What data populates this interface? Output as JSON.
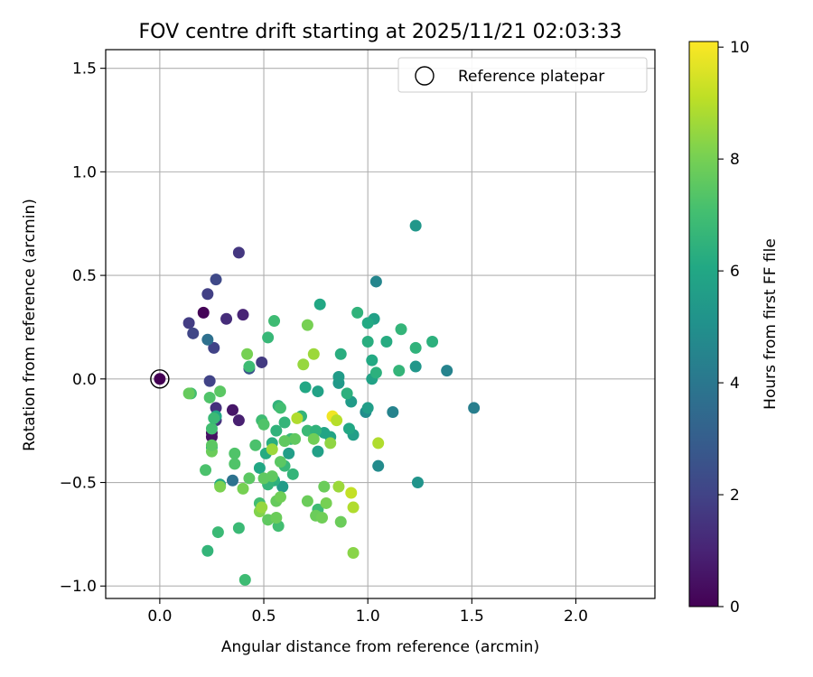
{
  "chart_data": {
    "type": "scatter",
    "title": "FOV centre drift starting at 2025/11/21 02:03:33",
    "xlabel": "Angular distance from reference (arcmin)",
    "ylabel": "Rotation from reference (arcmin)",
    "xlim": [
      -0.26,
      2.38
    ],
    "ylim": [
      -1.06,
      1.59
    ],
    "xticks": [
      0.0,
      0.5,
      1.0,
      1.5,
      2.0
    ],
    "xtick_labels": [
      "0.0",
      "0.5",
      "1.0",
      "1.5",
      "2.0"
    ],
    "yticks": [
      -1.0,
      -0.5,
      0.0,
      0.5,
      1.0,
      1.5
    ],
    "ytick_labels": [
      "−1.0",
      "−0.5",
      "0.0",
      "0.5",
      "1.0",
      "1.5"
    ],
    "grid": true,
    "legend": {
      "location": "top-right",
      "entries": [
        "Reference platepar"
      ]
    },
    "reference_point": {
      "x": 0.0,
      "y": 0.0,
      "label": "Reference platepar"
    },
    "colorbar": {
      "label": "Hours from first FF file",
      "range": [
        0,
        10.1
      ],
      "ticks": [
        0,
        2,
        4,
        6,
        8,
        10
      ],
      "tick_labels": [
        "0",
        "2",
        "4",
        "6",
        "8",
        "10"
      ],
      "colormap": "viridis"
    },
    "series": [
      {
        "name": "FF files",
        "color_by": "hours",
        "points": [
          {
            "x": 0.0,
            "y": 0.0,
            "hours": 0.0
          },
          {
            "x": 0.21,
            "y": 0.32,
            "hours": 0.1
          },
          {
            "x": 0.25,
            "y": -0.26,
            "hours": 0.4
          },
          {
            "x": 0.25,
            "y": -0.28,
            "hours": 0.5
          },
          {
            "x": 0.35,
            "y": -0.15,
            "hours": 0.6
          },
          {
            "x": 0.38,
            "y": -0.2,
            "hours": 0.9
          },
          {
            "x": 0.4,
            "y": 0.31,
            "hours": 1.0
          },
          {
            "x": 0.32,
            "y": 0.29,
            "hours": 1.3
          },
          {
            "x": 0.27,
            "y": -0.14,
            "hours": 1.4
          },
          {
            "x": 0.27,
            "y": -0.2,
            "hours": 1.5
          },
          {
            "x": 0.38,
            "y": 0.61,
            "hours": 1.6
          },
          {
            "x": 0.49,
            "y": 0.08,
            "hours": 1.7
          },
          {
            "x": 0.14,
            "y": 0.27,
            "hours": 1.8
          },
          {
            "x": 0.23,
            "y": 0.41,
            "hours": 1.9
          },
          {
            "x": 0.24,
            "y": -0.01,
            "hours": 2.0
          },
          {
            "x": 0.26,
            "y": 0.15,
            "hours": 2.0
          },
          {
            "x": 0.16,
            "y": 0.22,
            "hours": 2.1
          },
          {
            "x": 0.27,
            "y": 0.48,
            "hours": 2.2
          },
          {
            "x": 0.43,
            "y": 0.05,
            "hours": 2.5
          },
          {
            "x": 0.23,
            "y": 0.19,
            "hours": 3.7
          },
          {
            "x": 0.35,
            "y": -0.49,
            "hours": 3.8
          },
          {
            "x": 1.51,
            "y": -0.14,
            "hours": 4.3
          },
          {
            "x": 1.38,
            "y": 0.04,
            "hours": 4.5
          },
          {
            "x": 1.12,
            "y": -0.16,
            "hours": 4.5
          },
          {
            "x": 1.04,
            "y": 0.47,
            "hours": 4.6
          },
          {
            "x": 1.05,
            "y": -0.42,
            "hours": 4.8
          },
          {
            "x": 0.99,
            "y": -0.16,
            "hours": 4.9
          },
          {
            "x": 1.23,
            "y": 0.74,
            "hours": 5.3
          },
          {
            "x": 1.24,
            "y": -0.5,
            "hours": 5.2
          },
          {
            "x": 1.23,
            "y": 0.06,
            "hours": 5.3
          },
          {
            "x": 0.92,
            "y": -0.11,
            "hours": 5.5
          },
          {
            "x": 0.93,
            "y": -0.27,
            "hours": 5.6
          },
          {
            "x": 0.86,
            "y": -0.02,
            "hours": 5.4
          },
          {
            "x": 0.86,
            "y": 0.01,
            "hours": 5.5
          },
          {
            "x": 1.0,
            "y": -0.14,
            "hours": 5.6
          },
          {
            "x": 1.02,
            "y": 0.0,
            "hours": 5.8
          },
          {
            "x": 1.03,
            "y": 0.29,
            "hours": 5.7
          },
          {
            "x": 0.76,
            "y": -0.35,
            "hours": 5.7
          },
          {
            "x": 0.76,
            "y": -0.06,
            "hours": 5.8
          },
          {
            "x": 0.79,
            "y": -0.26,
            "hours": 5.9
          },
          {
            "x": 0.82,
            "y": -0.28,
            "hours": 5.9
          },
          {
            "x": 0.91,
            "y": -0.24,
            "hours": 6.0
          },
          {
            "x": 0.7,
            "y": -0.04,
            "hours": 6.0
          },
          {
            "x": 0.77,
            "y": 0.36,
            "hours": 6.0
          },
          {
            "x": 1.0,
            "y": 0.27,
            "hours": 6.1
          },
          {
            "x": 1.09,
            "y": 0.18,
            "hours": 6.2
          },
          {
            "x": 1.02,
            "y": 0.09,
            "hours": 6.1
          },
          {
            "x": 1.0,
            "y": 0.18,
            "hours": 6.3
          },
          {
            "x": 1.04,
            "y": 0.03,
            "hours": 6.4
          },
          {
            "x": 1.31,
            "y": 0.18,
            "hours": 6.4
          },
          {
            "x": 1.23,
            "y": 0.15,
            "hours": 6.5
          },
          {
            "x": 1.15,
            "y": 0.04,
            "hours": 6.6
          },
          {
            "x": 1.16,
            "y": 0.24,
            "hours": 6.6
          },
          {
            "x": 0.95,
            "y": 0.32,
            "hours": 6.5
          },
          {
            "x": 0.87,
            "y": 0.12,
            "hours": 6.3
          },
          {
            "x": 0.9,
            "y": -0.07,
            "hours": 6.4
          },
          {
            "x": 0.62,
            "y": -0.36,
            "hours": 5.6
          },
          {
            "x": 0.59,
            "y": -0.52,
            "hours": 5.5
          },
          {
            "x": 0.55,
            "y": -0.49,
            "hours": 6.4
          },
          {
            "x": 0.29,
            "y": -0.51,
            "hours": 6.1
          },
          {
            "x": 0.27,
            "y": -0.18,
            "hours": 6.0
          },
          {
            "x": 0.25,
            "y": -0.33,
            "hours": 6.0
          },
          {
            "x": 0.48,
            "y": -0.43,
            "hours": 6.0
          },
          {
            "x": 0.51,
            "y": -0.36,
            "hours": 6.2
          },
          {
            "x": 0.54,
            "y": -0.31,
            "hours": 6.3
          },
          {
            "x": 0.56,
            "y": -0.25,
            "hours": 6.5
          },
          {
            "x": 0.57,
            "y": -0.13,
            "hours": 6.5
          },
          {
            "x": 0.6,
            "y": -0.21,
            "hours": 6.6
          },
          {
            "x": 0.63,
            "y": -0.29,
            "hours": 6.8
          },
          {
            "x": 0.68,
            "y": -0.18,
            "hours": 6.6
          },
          {
            "x": 0.71,
            "y": -0.25,
            "hours": 6.8
          },
          {
            "x": 0.75,
            "y": -0.25,
            "hours": 6.5
          },
          {
            "x": 0.64,
            "y": -0.46,
            "hours": 6.6
          },
          {
            "x": 0.6,
            "y": -0.42,
            "hours": 6.7
          },
          {
            "x": 0.52,
            "y": -0.51,
            "hours": 6.6
          },
          {
            "x": 0.52,
            "y": 0.2,
            "hours": 6.7
          },
          {
            "x": 0.55,
            "y": 0.28,
            "hours": 6.9
          },
          {
            "x": 0.43,
            "y": 0.06,
            "hours": 6.9
          },
          {
            "x": 0.49,
            "y": -0.2,
            "hours": 6.9
          },
          {
            "x": 0.58,
            "y": -0.14,
            "hours": 7.0
          },
          {
            "x": 0.76,
            "y": -0.63,
            "hours": 6.9
          },
          {
            "x": 0.57,
            "y": -0.71,
            "hours": 7.0
          },
          {
            "x": 0.48,
            "y": -0.6,
            "hours": 7.0
          },
          {
            "x": 0.28,
            "y": -0.74,
            "hours": 6.8
          },
          {
            "x": 0.23,
            "y": -0.83,
            "hours": 6.6
          },
          {
            "x": 0.41,
            "y": -0.97,
            "hours": 6.9
          },
          {
            "x": 0.38,
            "y": -0.72,
            "hours": 6.8
          },
          {
            "x": 0.22,
            "y": -0.44,
            "hours": 7.2
          },
          {
            "x": 0.15,
            "y": -0.07,
            "hours": 7.0
          },
          {
            "x": 0.36,
            "y": -0.36,
            "hours": 7.3
          },
          {
            "x": 0.36,
            "y": -0.41,
            "hours": 7.3
          },
          {
            "x": 0.43,
            "y": -0.48,
            "hours": 7.5
          },
          {
            "x": 0.46,
            "y": -0.32,
            "hours": 7.2
          },
          {
            "x": 0.5,
            "y": -0.22,
            "hours": 7.3
          },
          {
            "x": 0.52,
            "y": -0.68,
            "hours": 7.6
          },
          {
            "x": 0.5,
            "y": -0.48,
            "hours": 7.6
          },
          {
            "x": 0.54,
            "y": -0.47,
            "hours": 7.6
          },
          {
            "x": 0.56,
            "y": -0.59,
            "hours": 7.7
          },
          {
            "x": 0.56,
            "y": -0.67,
            "hours": 7.8
          },
          {
            "x": 0.58,
            "y": -0.57,
            "hours": 7.9
          },
          {
            "x": 0.58,
            "y": -0.4,
            "hours": 7.5
          },
          {
            "x": 0.6,
            "y": -0.3,
            "hours": 7.6
          },
          {
            "x": 0.65,
            "y": -0.29,
            "hours": 7.6
          },
          {
            "x": 0.66,
            "y": -0.19,
            "hours": 8.9
          },
          {
            "x": 0.69,
            "y": 0.07,
            "hours": 8.5
          },
          {
            "x": 0.74,
            "y": 0.12,
            "hours": 8.6
          },
          {
            "x": 0.71,
            "y": 0.26,
            "hours": 8.0
          },
          {
            "x": 0.71,
            "y": -0.59,
            "hours": 7.8
          },
          {
            "x": 0.75,
            "y": -0.66,
            "hours": 7.8
          },
          {
            "x": 0.78,
            "y": -0.67,
            "hours": 7.9
          },
          {
            "x": 0.8,
            "y": -0.6,
            "hours": 8.0
          },
          {
            "x": 0.79,
            "y": -0.52,
            "hours": 7.8
          },
          {
            "x": 0.82,
            "y": -0.31,
            "hours": 8.4
          },
          {
            "x": 0.83,
            "y": -0.18,
            "hours": 9.9
          },
          {
            "x": 0.85,
            "y": -0.2,
            "hours": 9.0
          },
          {
            "x": 0.86,
            "y": -0.52,
            "hours": 8.6
          },
          {
            "x": 0.87,
            "y": -0.69,
            "hours": 7.8
          },
          {
            "x": 0.92,
            "y": -0.55,
            "hours": 9.2
          },
          {
            "x": 0.93,
            "y": -0.62,
            "hours": 8.9
          },
          {
            "x": 0.93,
            "y": -0.84,
            "hours": 8.3
          },
          {
            "x": 1.05,
            "y": -0.31,
            "hours": 8.9
          },
          {
            "x": 0.74,
            "y": -0.29,
            "hours": 7.9
          },
          {
            "x": 0.54,
            "y": -0.34,
            "hours": 8.6
          },
          {
            "x": 0.48,
            "y": -0.64,
            "hours": 8.2
          },
          {
            "x": 0.49,
            "y": -0.62,
            "hours": 8.5
          },
          {
            "x": 0.42,
            "y": 0.12,
            "hours": 8.0
          },
          {
            "x": 0.4,
            "y": -0.53,
            "hours": 8.0
          },
          {
            "x": 0.29,
            "y": -0.52,
            "hours": 8.1
          },
          {
            "x": 0.25,
            "y": -0.35,
            "hours": 7.8
          },
          {
            "x": 0.25,
            "y": -0.32,
            "hours": 7.5
          },
          {
            "x": 0.14,
            "y": -0.07,
            "hours": 7.7
          },
          {
            "x": 0.24,
            "y": -0.09,
            "hours": 7.3
          },
          {
            "x": 0.29,
            "y": -0.06,
            "hours": 7.5
          },
          {
            "x": 0.25,
            "y": -0.24,
            "hours": 7.0
          },
          {
            "x": 0.26,
            "y": -0.19,
            "hours": 6.8
          }
        ]
      }
    ]
  }
}
